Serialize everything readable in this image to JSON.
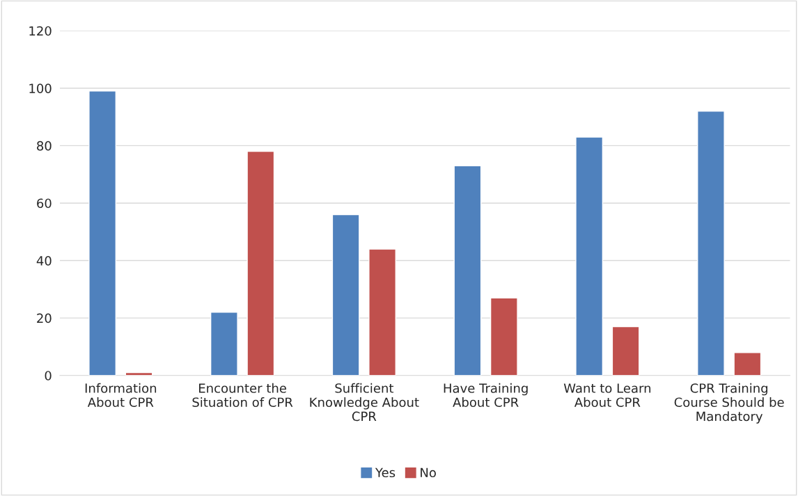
{
  "chart_data": {
    "type": "bar",
    "categories": [
      "Information\nAbout CPR",
      "Encounter the\nSituation of CPR",
      "Sufficient\nKnowledge About\nCPR",
      "Have Training\nAbout CPR",
      "Want to Learn\nAbout CPR",
      "CPR Training\nCourse Should be\nMandatory"
    ],
    "series": [
      {
        "name": "Yes",
        "color": "#4f81bd",
        "values": [
          99,
          22,
          56,
          73,
          83,
          92
        ]
      },
      {
        "name": "No",
        "color": "#c0504d",
        "values": [
          1,
          78,
          44,
          27,
          17,
          8
        ]
      }
    ],
    "ylim": [
      0,
      120
    ],
    "yticks": [
      0,
      20,
      40,
      60,
      80,
      100,
      120
    ],
    "grid": "y",
    "legend": "bottom"
  }
}
